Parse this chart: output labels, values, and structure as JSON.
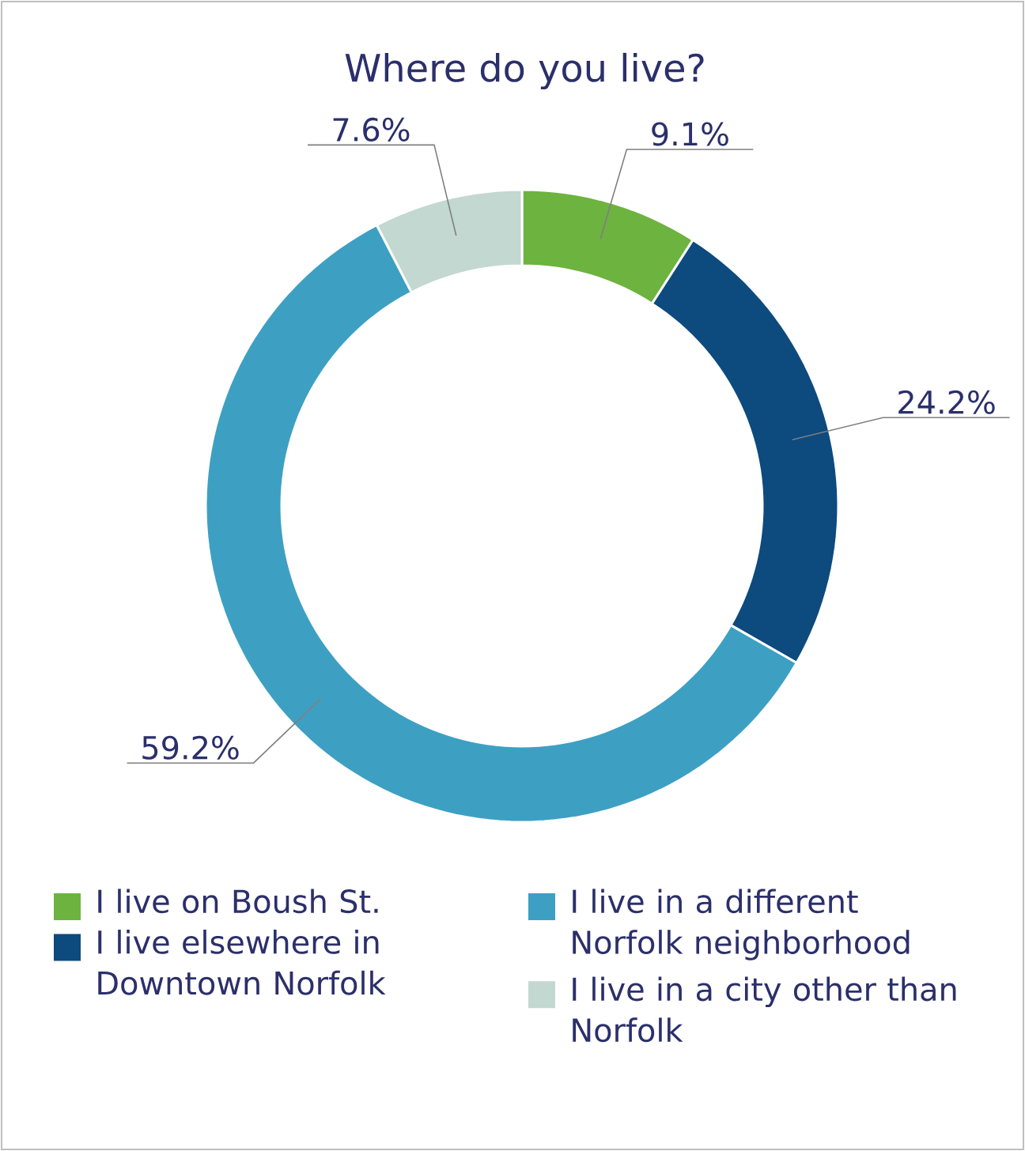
{
  "chart_data": {
    "type": "donut",
    "title": "Where do you live?",
    "categories": [
      "I live on Boush St.",
      "I live elsewhere in Downtown Norfolk",
      "I live in a different Norfolk neighborhood",
      "I live in a city other than Norfolk"
    ],
    "values": [
      9.1,
      24.2,
      59.2,
      7.6
    ],
    "value_labels": [
      "9.1%",
      "24.2%",
      "59.2%",
      "7.6%"
    ],
    "colors": [
      "#6db33f",
      "#0d4a7e",
      "#3da0c3",
      "#c2d8d0"
    ],
    "legend": "bottom"
  }
}
